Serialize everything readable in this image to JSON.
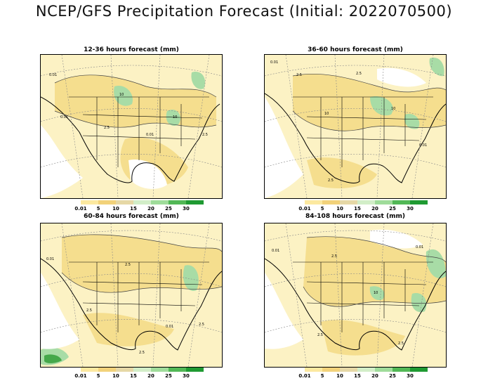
{
  "title": "NCEP/GFS Precipitation Forecast (Initial: 2022070500)",
  "units": "mm",
  "legend_levels": [
    "0.01",
    "5",
    "10",
    "15",
    "20",
    "25",
    "30"
  ],
  "legend_colors": [
    "#fce9a0",
    "#f2d27a",
    "#e6d8a6",
    "#d2eec8",
    "#9fdc9a",
    "#52b856",
    "#1f9a32"
  ],
  "map_colors": {
    "water": "#ffffff",
    "light": "#fcf2c4",
    "mid": "#f5de8e",
    "green": "#a8dca6",
    "dkgreen": "#45a84a"
  },
  "panels": [
    {
      "title": "12-36 hours forecast (mm)",
      "contour_labels": [
        "0.01",
        "0.01",
        "2.5",
        "10",
        "0.01",
        "2.5",
        "10"
      ]
    },
    {
      "title": "36-60 hours forecast (mm)",
      "contour_labels": [
        "0.01",
        "2.5",
        "2.5",
        "10",
        "10",
        "0.01",
        "2.5"
      ]
    },
    {
      "title": "60-84 hours forecast (mm)",
      "contour_labels": [
        "0.01",
        "2.5",
        "2.5",
        "0.01",
        "2.5",
        "2.5"
      ]
    },
    {
      "title": "84-108 hours forecast (mm)",
      "contour_labels": [
        "0.01",
        "2.5",
        "2.5",
        "10",
        "2.5",
        "0.01"
      ]
    }
  ]
}
